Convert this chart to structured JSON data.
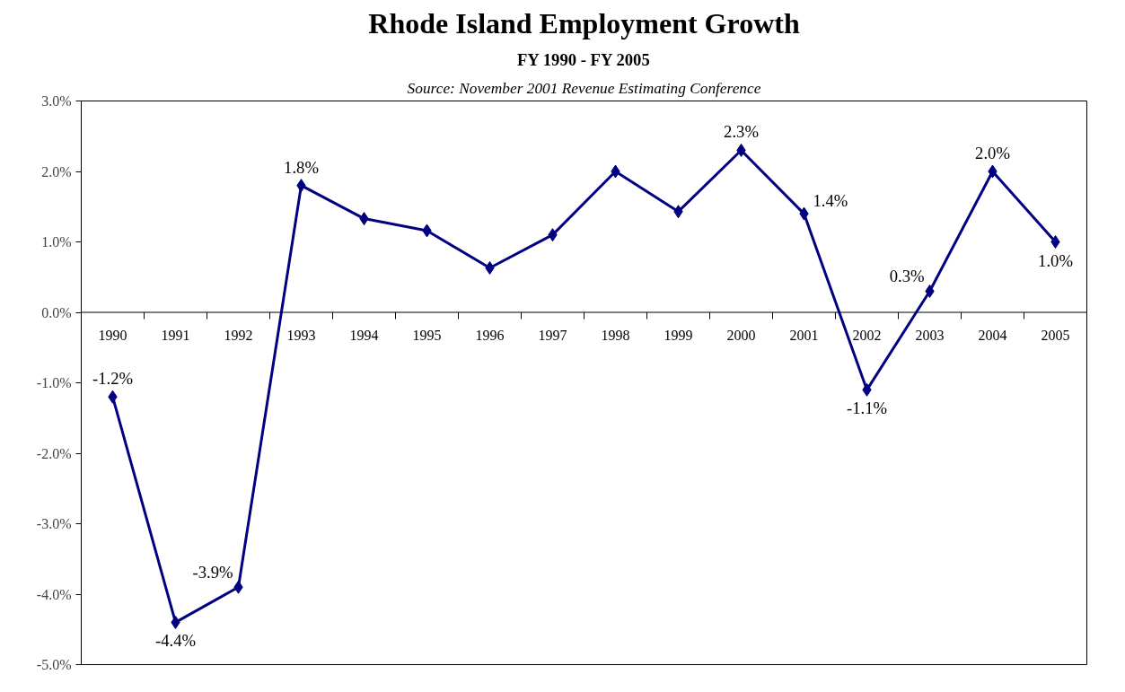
{
  "chart_data": {
    "type": "line",
    "title": "Rhode Island Employment Growth",
    "subtitle": "FY 1990 - FY 2005",
    "annotations": [
      "Source: November 2001 Revenue Estimating Conference"
    ],
    "categories": [
      "1990",
      "1991",
      "1992",
      "1993",
      "1994",
      "1995",
      "1996",
      "1997",
      "1998",
      "1999",
      "2000",
      "2001",
      "2002",
      "2003",
      "2004",
      "2005"
    ],
    "series": [
      {
        "color": "#000080",
        "values": [
          -1.2,
          -4.4,
          -3.9,
          1.8,
          1.33,
          1.16,
          0.63,
          1.1,
          2.0,
          1.43,
          2.3,
          1.4,
          -1.1,
          0.3,
          2.0,
          1.0
        ],
        "value_labels": [
          "-1.2%",
          "-4.4%",
          "-3.9%",
          "1.8%",
          null,
          null,
          null,
          null,
          null,
          null,
          "2.3%",
          "1.4%",
          "-1.1%",
          "0.3%",
          "2.0%",
          "1.0%"
        ]
      }
    ],
    "ylim": [
      -5,
      3
    ],
    "yticks": [
      {
        "value": -5,
        "label": "-5.0%"
      },
      {
        "value": -4,
        "label": "-4.0%"
      },
      {
        "value": -3,
        "label": "-3.0%"
      },
      {
        "value": -2,
        "label": "-2.0%"
      },
      {
        "value": -1,
        "label": "-1.0%"
      },
      {
        "value": 0,
        "label": "0.0%"
      },
      {
        "value": 1,
        "label": "1.0%"
      },
      {
        "value": 2,
        "label": "2.0%"
      },
      {
        "value": 3,
        "label": "3.0%"
      }
    ],
    "marker": "diamond",
    "line_style": "solid",
    "grid": false
  }
}
